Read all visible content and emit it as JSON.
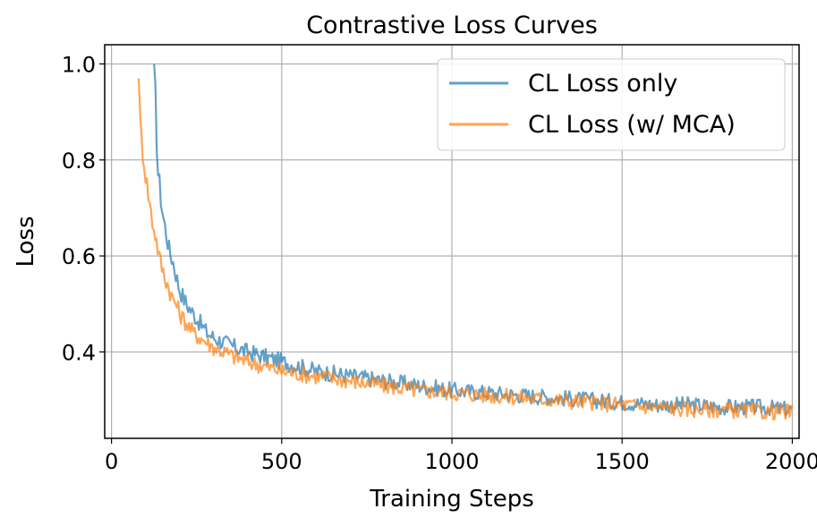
{
  "chart_data": {
    "type": "line",
    "title": "Contrastive Loss Curves",
    "xlabel": "Training Steps",
    "ylabel": "Loss",
    "xlim": [
      -20,
      2020
    ],
    "ylim": [
      0.22,
      1.04
    ],
    "xticks": [
      0,
      500,
      1000,
      1500,
      2000
    ],
    "xtick_labels": [
      "0",
      "500",
      "1000",
      "1500",
      "2000"
    ],
    "yticks": [
      0.4,
      0.6,
      0.8,
      1.0
    ],
    "ytick_labels": [
      "0.4",
      "0.6",
      "0.8",
      "1.0"
    ],
    "grid": true,
    "legend_position": "top-right",
    "series": [
      {
        "name": "CL Loss only",
        "color": "#1f77b4",
        "x": [
          125,
          130,
          135,
          140,
          145,
          150,
          160,
          170,
          180,
          190,
          200,
          220,
          240,
          260,
          280,
          300,
          330,
          360,
          400,
          450,
          500,
          550,
          600,
          650,
          700,
          800,
          900,
          1000,
          1100,
          1200,
          1300,
          1400,
          1500,
          1600,
          1700,
          1800,
          1900,
          2000
        ],
        "values": [
          1.0,
          0.92,
          0.78,
          0.76,
          0.72,
          0.69,
          0.65,
          0.61,
          0.59,
          0.56,
          0.53,
          0.5,
          0.48,
          0.46,
          0.44,
          0.43,
          0.42,
          0.41,
          0.4,
          0.39,
          0.38,
          0.37,
          0.36,
          0.355,
          0.35,
          0.34,
          0.33,
          0.32,
          0.315,
          0.31,
          0.305,
          0.3,
          0.295,
          0.29,
          0.29,
          0.285,
          0.285,
          0.28
        ]
      },
      {
        "name": "CL Loss (w/ MCA)",
        "color": "#ff7f0e",
        "x": [
          80,
          85,
          90,
          95,
          100,
          110,
          120,
          130,
          140,
          150,
          160,
          170,
          180,
          190,
          200,
          220,
          240,
          260,
          280,
          300,
          330,
          360,
          400,
          450,
          500,
          550,
          600,
          650,
          700,
          800,
          900,
          1000,
          1100,
          1200,
          1300,
          1400,
          1500,
          1600,
          1700,
          1800,
          1900,
          2000
        ],
        "values": [
          0.97,
          0.86,
          0.83,
          0.8,
          0.77,
          0.72,
          0.67,
          0.64,
          0.6,
          0.57,
          0.55,
          0.53,
          0.51,
          0.5,
          0.48,
          0.46,
          0.44,
          0.43,
          0.42,
          0.41,
          0.4,
          0.39,
          0.38,
          0.37,
          0.36,
          0.355,
          0.35,
          0.345,
          0.34,
          0.33,
          0.32,
          0.315,
          0.31,
          0.305,
          0.3,
          0.295,
          0.29,
          0.285,
          0.28,
          0.28,
          0.275,
          0.275
        ]
      }
    ]
  }
}
